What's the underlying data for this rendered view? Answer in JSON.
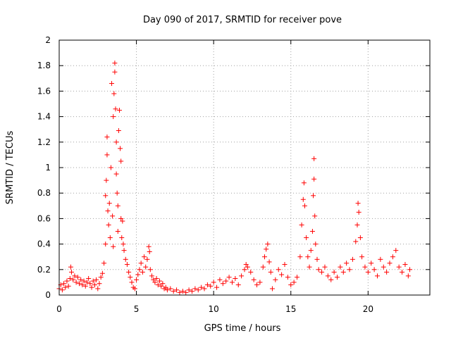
{
  "chart_data": {
    "type": "scatter",
    "title": "Day 090 of 2017, SRMTID for receiver pove",
    "xlabel": "GPS time / hours",
    "ylabel": "SRMTID / TECUs",
    "xlim": [
      0,
      24
    ],
    "ylim": [
      0,
      2
    ],
    "xticks": [
      0,
      5,
      10,
      15,
      20
    ],
    "xtick_labels": [
      "0",
      "5",
      "10",
      "15",
      "20"
    ],
    "yticks": [
      0,
      0.2,
      0.4,
      0.6,
      0.8,
      1,
      1.2,
      1.4,
      1.6,
      1.8,
      2
    ],
    "ytick_labels": [
      "0",
      "0.2",
      "0.4",
      "0.6",
      "0.8",
      "1",
      "1.2",
      "1.4",
      "1.6",
      "1.8",
      "2"
    ],
    "grid": true,
    "marker": "+",
    "color": "#ff0000",
    "series": [
      {
        "name": "SRMTID",
        "points": [
          [
            0.0,
            0.05
          ],
          [
            0.1,
            0.08
          ],
          [
            0.2,
            0.04
          ],
          [
            0.3,
            0.09
          ],
          [
            0.4,
            0.06
          ],
          [
            0.5,
            0.11
          ],
          [
            0.6,
            0.07
          ],
          [
            0.7,
            0.13
          ],
          [
            0.75,
            0.22
          ],
          [
            0.8,
            0.18
          ],
          [
            0.9,
            0.12
          ],
          [
            1.0,
            0.15
          ],
          [
            1.1,
            0.1
          ],
          [
            1.2,
            0.14
          ],
          [
            1.3,
            0.09
          ],
          [
            1.4,
            0.12
          ],
          [
            1.5,
            0.08
          ],
          [
            1.6,
            0.11
          ],
          [
            1.7,
            0.07
          ],
          [
            1.8,
            0.1
          ],
          [
            1.9,
            0.13
          ],
          [
            2.0,
            0.09
          ],
          [
            2.1,
            0.06
          ],
          [
            2.2,
            0.11
          ],
          [
            2.3,
            0.08
          ],
          [
            2.4,
            0.12
          ],
          [
            2.5,
            0.05
          ],
          [
            2.6,
            0.09
          ],
          [
            2.7,
            0.14
          ],
          [
            2.8,
            0.17
          ],
          [
            2.9,
            0.25
          ],
          [
            3.0,
            0.4
          ],
          [
            3.0,
            0.78
          ],
          [
            3.05,
            0.9
          ],
          [
            3.1,
            1.1
          ],
          [
            3.1,
            1.24
          ],
          [
            3.15,
            0.66
          ],
          [
            3.2,
            0.55
          ],
          [
            3.25,
            0.72
          ],
          [
            3.3,
            0.45
          ],
          [
            3.35,
            1.0
          ],
          [
            3.4,
            1.66
          ],
          [
            3.45,
            0.62
          ],
          [
            3.5,
            0.38
          ],
          [
            3.5,
            1.4
          ],
          [
            3.55,
            1.58
          ],
          [
            3.6,
            1.82
          ],
          [
            3.6,
            1.75
          ],
          [
            3.65,
            1.46
          ],
          [
            3.7,
            1.2
          ],
          [
            3.7,
            0.95
          ],
          [
            3.75,
            0.8
          ],
          [
            3.8,
            0.7
          ],
          [
            3.8,
            0.5
          ],
          [
            3.85,
            1.29
          ],
          [
            3.9,
            1.45
          ],
          [
            3.95,
            1.15
          ],
          [
            4.0,
            1.05
          ],
          [
            4.0,
            0.6
          ],
          [
            4.05,
            0.45
          ],
          [
            4.1,
            0.58
          ],
          [
            4.15,
            0.4
          ],
          [
            4.2,
            0.35
          ],
          [
            4.3,
            0.28
          ],
          [
            4.4,
            0.24
          ],
          [
            4.5,
            0.18
          ],
          [
            4.6,
            0.14
          ],
          [
            4.7,
            0.1
          ],
          [
            4.8,
            0.06
          ],
          [
            4.9,
            0.05
          ],
          [
            5.0,
            0.12
          ],
          [
            5.1,
            0.16
          ],
          [
            5.2,
            0.2
          ],
          [
            5.3,
            0.25
          ],
          [
            5.4,
            0.18
          ],
          [
            5.5,
            0.3
          ],
          [
            5.6,
            0.22
          ],
          [
            5.7,
            0.28
          ],
          [
            5.8,
            0.38
          ],
          [
            5.85,
            0.34
          ],
          [
            5.9,
            0.2
          ],
          [
            6.0,
            0.15
          ],
          [
            6.1,
            0.12
          ],
          [
            6.2,
            0.1
          ],
          [
            6.3,
            0.13
          ],
          [
            6.4,
            0.08
          ],
          [
            6.5,
            0.11
          ],
          [
            6.6,
            0.07
          ],
          [
            6.7,
            0.09
          ],
          [
            6.8,
            0.05
          ],
          [
            6.9,
            0.06
          ],
          [
            7.0,
            0.04
          ],
          [
            7.2,
            0.05
          ],
          [
            7.4,
            0.03
          ],
          [
            7.6,
            0.04
          ],
          [
            7.8,
            0.02
          ],
          [
            8.0,
            0.03
          ],
          [
            8.2,
            0.02
          ],
          [
            8.4,
            0.04
          ],
          [
            8.6,
            0.03
          ],
          [
            8.8,
            0.05
          ],
          [
            9.0,
            0.04
          ],
          [
            9.2,
            0.06
          ],
          [
            9.4,
            0.05
          ],
          [
            9.6,
            0.08
          ],
          [
            9.8,
            0.07
          ],
          [
            10.0,
            0.1
          ],
          [
            10.2,
            0.06
          ],
          [
            10.4,
            0.12
          ],
          [
            10.6,
            0.09
          ],
          [
            10.8,
            0.11
          ],
          [
            11.0,
            0.14
          ],
          [
            11.2,
            0.1
          ],
          [
            11.4,
            0.13
          ],
          [
            11.6,
            0.08
          ],
          [
            11.8,
            0.15
          ],
          [
            12.0,
            0.2
          ],
          [
            12.1,
            0.24
          ],
          [
            12.2,
            0.22
          ],
          [
            12.4,
            0.18
          ],
          [
            12.6,
            0.12
          ],
          [
            12.8,
            0.08
          ],
          [
            13.0,
            0.1
          ],
          [
            13.2,
            0.22
          ],
          [
            13.3,
            0.3
          ],
          [
            13.4,
            0.36
          ],
          [
            13.5,
            0.4
          ],
          [
            13.6,
            0.26
          ],
          [
            13.7,
            0.18
          ],
          [
            13.8,
            0.05
          ],
          [
            14.0,
            0.12
          ],
          [
            14.2,
            0.2
          ],
          [
            14.4,
            0.16
          ],
          [
            14.6,
            0.24
          ],
          [
            14.8,
            0.14
          ],
          [
            15.0,
            0.08
          ],
          [
            15.2,
            0.1
          ],
          [
            15.4,
            0.14
          ],
          [
            15.6,
            0.3
          ],
          [
            15.7,
            0.55
          ],
          [
            15.8,
            0.75
          ],
          [
            15.85,
            0.88
          ],
          [
            15.9,
            0.7
          ],
          [
            16.0,
            0.45
          ],
          [
            16.1,
            0.3
          ],
          [
            16.2,
            0.22
          ],
          [
            16.3,
            0.35
          ],
          [
            16.4,
            0.5
          ],
          [
            16.45,
            0.78
          ],
          [
            16.5,
            1.07
          ],
          [
            16.5,
            0.91
          ],
          [
            16.55,
            0.62
          ],
          [
            16.6,
            0.4
          ],
          [
            16.7,
            0.28
          ],
          [
            16.8,
            0.2
          ],
          [
            17.0,
            0.18
          ],
          [
            17.2,
            0.22
          ],
          [
            17.4,
            0.15
          ],
          [
            17.6,
            0.12
          ],
          [
            17.8,
            0.18
          ],
          [
            18.0,
            0.14
          ],
          [
            18.2,
            0.22
          ],
          [
            18.4,
            0.18
          ],
          [
            18.6,
            0.25
          ],
          [
            18.8,
            0.2
          ],
          [
            19.0,
            0.28
          ],
          [
            19.2,
            0.42
          ],
          [
            19.3,
            0.55
          ],
          [
            19.35,
            0.72
          ],
          [
            19.4,
            0.65
          ],
          [
            19.5,
            0.45
          ],
          [
            19.6,
            0.3
          ],
          [
            19.8,
            0.22
          ],
          [
            20.0,
            0.18
          ],
          [
            20.2,
            0.25
          ],
          [
            20.4,
            0.2
          ],
          [
            20.6,
            0.15
          ],
          [
            20.8,
            0.28
          ],
          [
            21.0,
            0.22
          ],
          [
            21.2,
            0.18
          ],
          [
            21.4,
            0.25
          ],
          [
            21.6,
            0.3
          ],
          [
            21.8,
            0.35
          ],
          [
            22.0,
            0.22
          ],
          [
            22.2,
            0.18
          ],
          [
            22.4,
            0.24
          ],
          [
            22.6,
            0.15
          ],
          [
            22.7,
            0.2
          ]
        ]
      }
    ]
  }
}
